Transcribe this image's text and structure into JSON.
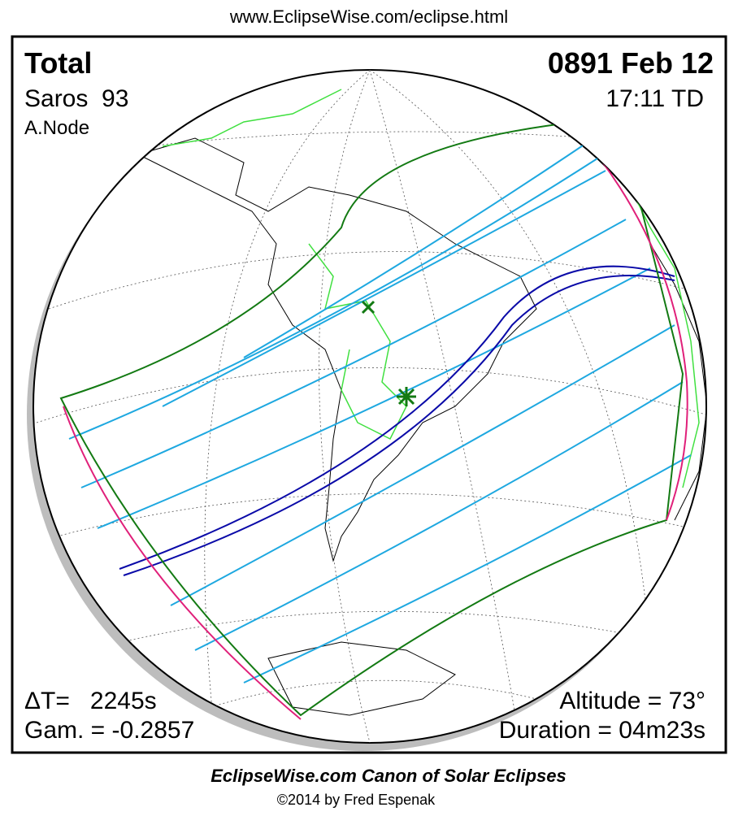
{
  "header": {
    "url": "www.EclipseWise.com/eclipse.html"
  },
  "panel": {
    "top_left": {
      "eclipse_type": "Total",
      "saros": "Saros  93",
      "node": "A.Node"
    },
    "top_right": {
      "date": "0891 Feb 12",
      "time": "17:11 TD"
    },
    "bottom_left": {
      "delta_t": "ΔT=   2245s",
      "gamma": "Gam. = -0.2857"
    },
    "bottom_right": {
      "altitude": "Altitude = 73°",
      "duration": "Duration = 04m23s"
    }
  },
  "footer": {
    "title": "EclipseWise.com Canon of Solar Eclipses",
    "credit": "©2014 by Fred Espenak"
  }
}
